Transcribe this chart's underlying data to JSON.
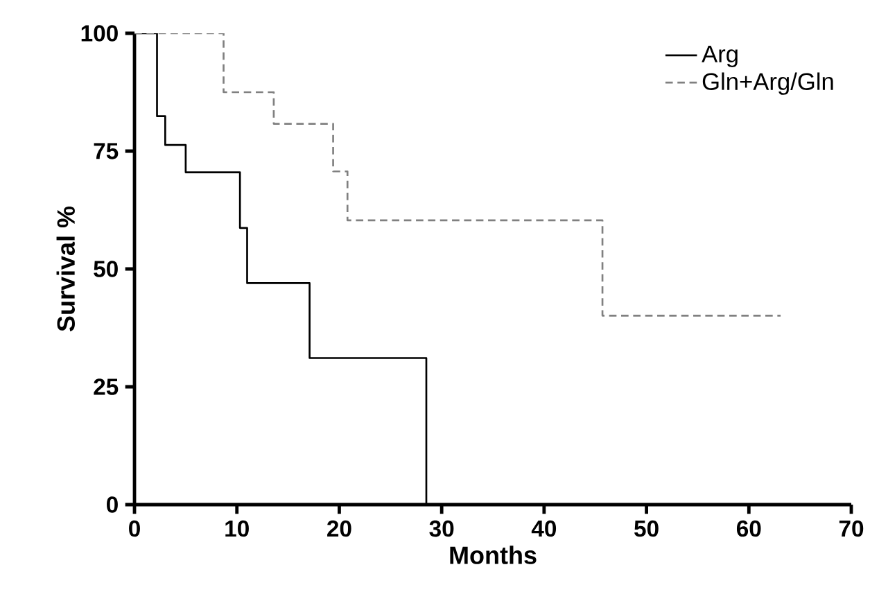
{
  "chart_data": {
    "type": "step",
    "xlabel": "Months",
    "ylabel": "Survival %",
    "xlim": [
      0,
      70
    ],
    "xticks": [
      0,
      10,
      20,
      30,
      40,
      50,
      60,
      70
    ],
    "ylim": [
      0,
      100
    ],
    "yticks": [
      0,
      25,
      50,
      75,
      100
    ],
    "legend": "top right",
    "series": [
      {
        "name": "Arg",
        "color": "#000000",
        "line_style": "solid",
        "x": [
          0,
          2.2,
          3.0,
          5.0,
          10.3,
          11.0,
          17.1,
          28.5
        ],
        "values": [
          100,
          82.4,
          76.3,
          70.5,
          58.7,
          47.0,
          31.1,
          0
        ]
      },
      {
        "name": "Gln+Arg/Gln",
        "color": "#808080",
        "line_style": "dashed",
        "x": [
          0,
          8.7,
          13.6,
          19.4,
          20.8,
          45.7,
          63.1
        ],
        "values": [
          100,
          87.5,
          80.8,
          70.7,
          60.3,
          40.1,
          40.1
        ]
      }
    ]
  }
}
